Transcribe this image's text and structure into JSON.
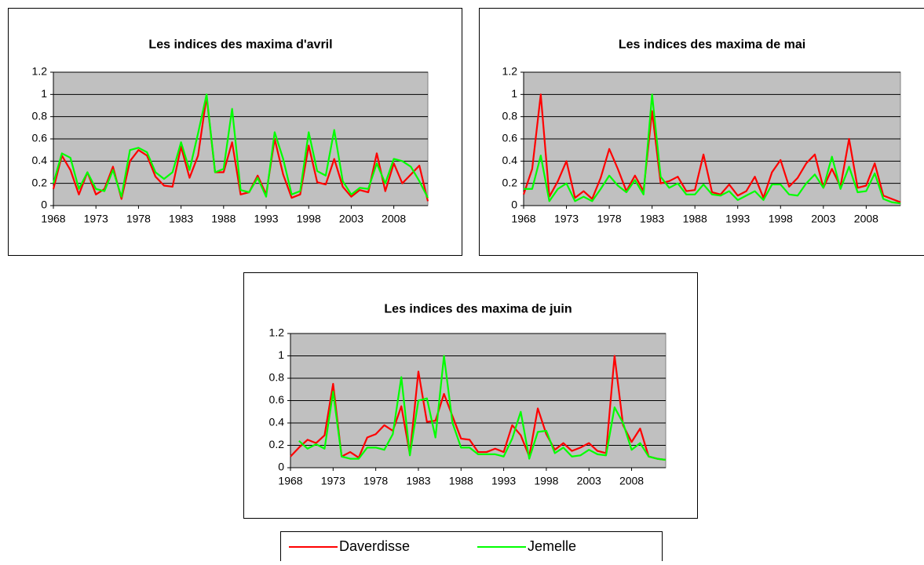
{
  "chart_data": [
    {
      "type": "line",
      "title": "Les indices des maxima d'avril",
      "x": [
        1968,
        1969,
        1970,
        1971,
        1972,
        1973,
        1974,
        1975,
        1976,
        1977,
        1978,
        1979,
        1980,
        1981,
        1982,
        1983,
        1984,
        1985,
        1986,
        1987,
        1988,
        1989,
        1990,
        1991,
        1992,
        1993,
        1994,
        1995,
        1996,
        1997,
        1998,
        1999,
        2000,
        2001,
        2002,
        2003,
        2004,
        2005,
        2006,
        2007,
        2008,
        2009,
        2010,
        2011,
        2012
      ],
      "xlim": [
        1968,
        2012
      ],
      "xticks": [
        1968,
        1973,
        1978,
        1983,
        1988,
        1993,
        1998,
        2003,
        2008
      ],
      "ylim": [
        0,
        1.2
      ],
      "yticks": [
        0,
        0.2,
        0.4,
        0.6,
        0.8,
        1,
        1.2
      ],
      "series": [
        {
          "name": "Daverdisse",
          "color": "#ff0000",
          "values": [
            0.15,
            0.45,
            0.32,
            0.1,
            0.3,
            0.1,
            0.15,
            0.35,
            0.06,
            0.4,
            0.5,
            0.45,
            0.26,
            0.18,
            0.17,
            0.53,
            0.25,
            0.45,
            0.98,
            0.3,
            0.3,
            0.57,
            0.1,
            0.12,
            0.27,
            0.1,
            0.6,
            0.28,
            0.07,
            0.1,
            0.54,
            0.21,
            0.19,
            0.42,
            0.17,
            0.08,
            0.14,
            0.12,
            0.47,
            0.13,
            0.38,
            0.2,
            0.28,
            0.36,
            0.04
          ]
        },
        {
          "name": "Jemelle",
          "color": "#00ff00",
          "values": [
            0.2,
            0.47,
            0.43,
            0.15,
            0.3,
            0.15,
            0.13,
            0.32,
            0.08,
            0.5,
            0.52,
            0.48,
            0.3,
            0.24,
            0.3,
            0.57,
            0.32,
            0.65,
            1.0,
            0.3,
            0.33,
            0.87,
            0.14,
            0.12,
            0.25,
            0.08,
            0.66,
            0.42,
            0.1,
            0.13,
            0.66,
            0.31,
            0.27,
            0.68,
            0.22,
            0.1,
            0.16,
            0.15,
            0.38,
            0.2,
            0.42,
            0.4,
            0.35,
            0.22,
            0.07
          ]
        }
      ]
    },
    {
      "type": "line",
      "title": "Les indices des maxima de mai",
      "x": [
        1968,
        1969,
        1970,
        1971,
        1972,
        1973,
        1974,
        1975,
        1976,
        1977,
        1978,
        1979,
        1980,
        1981,
        1982,
        1983,
        1984,
        1985,
        1986,
        1987,
        1988,
        1989,
        1990,
        1991,
        1992,
        1993,
        1994,
        1995,
        1996,
        1997,
        1998,
        1999,
        2000,
        2001,
        2002,
        2003,
        2004,
        2005,
        2006,
        2007,
        2008,
        2009,
        2010,
        2011,
        2012
      ],
      "xlim": [
        1968,
        2012
      ],
      "xticks": [
        1968,
        1973,
        1978,
        1983,
        1988,
        1993,
        1998,
        2003,
        2008
      ],
      "ylim": [
        0,
        1.2
      ],
      "yticks": [
        0,
        0.2,
        0.4,
        0.6,
        0.8,
        1,
        1.2
      ],
      "series": [
        {
          "name": "Daverdisse",
          "color": "#ff0000",
          "values": [
            0.1,
            0.33,
            1.0,
            0.08,
            0.22,
            0.4,
            0.07,
            0.13,
            0.06,
            0.25,
            0.51,
            0.33,
            0.13,
            0.27,
            0.13,
            0.85,
            0.2,
            0.22,
            0.26,
            0.13,
            0.14,
            0.46,
            0.12,
            0.1,
            0.19,
            0.09,
            0.13,
            0.26,
            0.07,
            0.3,
            0.41,
            0.17,
            0.25,
            0.38,
            0.46,
            0.16,
            0.33,
            0.17,
            0.6,
            0.16,
            0.18,
            0.38,
            0.09,
            0.06,
            0.03
          ]
        },
        {
          "name": "Jemelle",
          "color": "#00ff00",
          "values": [
            0.15,
            0.15,
            0.45,
            0.04,
            0.15,
            0.2,
            0.04,
            0.08,
            0.04,
            0.15,
            0.27,
            0.18,
            0.12,
            0.23,
            0.1,
            1.0,
            0.26,
            0.16,
            0.2,
            0.1,
            0.1,
            0.19,
            0.1,
            0.09,
            0.13,
            0.05,
            0.09,
            0.13,
            0.05,
            0.19,
            0.19,
            0.1,
            0.09,
            0.2,
            0.28,
            0.16,
            0.44,
            0.15,
            0.35,
            0.12,
            0.13,
            0.29,
            0.06,
            0.03,
            0.02
          ]
        }
      ]
    },
    {
      "type": "line",
      "title": "Les indices des maxima de juin",
      "x": [
        1968,
        1969,
        1970,
        1971,
        1972,
        1973,
        1974,
        1975,
        1976,
        1977,
        1978,
        1979,
        1980,
        1981,
        1982,
        1983,
        1984,
        1985,
        1986,
        1987,
        1988,
        1989,
        1990,
        1991,
        1992,
        1993,
        1994,
        1995,
        1996,
        1997,
        1998,
        1999,
        2000,
        2001,
        2002,
        2003,
        2004,
        2005,
        2006,
        2007,
        2008,
        2009,
        2010,
        2011,
        2012
      ],
      "xlim": [
        1968,
        2012
      ],
      "xticks": [
        1968,
        1973,
        1978,
        1983,
        1988,
        1993,
        1998,
        2003,
        2008
      ],
      "ylim": [
        0,
        1.2
      ],
      "yticks": [
        0,
        0.2,
        0.4,
        0.6,
        0.8,
        1,
        1.2
      ],
      "series": [
        {
          "name": "Daverdisse",
          "color": "#ff0000",
          "values": [
            0.1,
            0.18,
            0.25,
            0.22,
            0.29,
            0.75,
            0.1,
            0.14,
            0.09,
            0.27,
            0.3,
            0.38,
            0.33,
            0.55,
            0.12,
            0.86,
            0.41,
            0.42,
            0.66,
            0.46,
            0.26,
            0.25,
            0.14,
            0.14,
            0.17,
            0.14,
            0.38,
            0.29,
            0.1,
            0.53,
            0.3,
            0.16,
            0.22,
            0.15,
            0.18,
            0.22,
            0.15,
            0.13,
            1.0,
            0.38,
            0.23,
            0.35,
            0.1,
            0.08,
            0.07
          ]
        },
        {
          "name": "Jemelle",
          "color": "#00ff00",
          "values": [
            null,
            0.24,
            0.17,
            0.21,
            0.17,
            0.68,
            0.1,
            0.08,
            0.08,
            0.18,
            0.18,
            0.16,
            0.3,
            0.81,
            0.11,
            0.6,
            0.62,
            0.27,
            1.0,
            0.4,
            0.18,
            0.18,
            0.12,
            0.12,
            0.12,
            0.1,
            0.26,
            0.5,
            0.08,
            0.32,
            0.33,
            0.13,
            0.18,
            0.1,
            0.11,
            0.16,
            0.12,
            0.11,
            0.54,
            0.4,
            0.16,
            0.22,
            0.1,
            0.08,
            0.07
          ]
        }
      ]
    }
  ]
}
